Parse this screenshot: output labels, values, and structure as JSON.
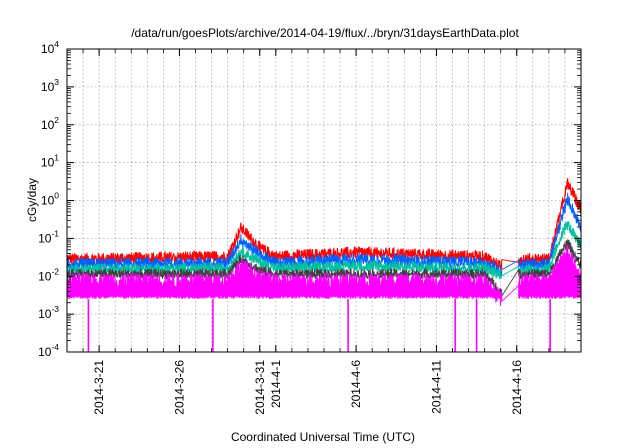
{
  "chart_data": {
    "type": "line",
    "title": "/data/run/goesPlots/archive/2014-04-19/flux/../bryn/31daysEarthData.plot",
    "xlabel": "Coordinated Universal Time (UTC)",
    "ylabel": "cGy/day",
    "x_range": [
      "2014-03-19",
      "2014-04-20"
    ],
    "ylim": [
      0.0001,
      10000
    ],
    "y_scale": "log",
    "grid": true,
    "x_ticks": [
      "2014-3-21",
      "2014-3-26",
      "2014-3-31",
      "2014-4-1",
      "2014-4-6",
      "2014-4-11",
      "2014-4-16"
    ],
    "y_ticks": [
      {
        "value": 0.0001,
        "base": "10",
        "exp": "-4"
      },
      {
        "value": 0.001,
        "base": "10",
        "exp": "-3"
      },
      {
        "value": 0.01,
        "base": "10",
        "exp": "-2"
      },
      {
        "value": 0.1,
        "base": "10",
        "exp": "-1"
      },
      {
        "value": 1,
        "base": "10",
        "exp": "0"
      },
      {
        "value": 10,
        "base": "10",
        "exp": "1"
      },
      {
        "value": 100,
        "base": "10",
        "exp": "2"
      },
      {
        "value": 1000,
        "base": "10",
        "exp": "3"
      },
      {
        "value": 10000,
        "base": "10",
        "exp": "4"
      }
    ],
    "series": [
      {
        "color": "#ff0000",
        "base": 0.03,
        "spread": 0.012,
        "points": [
          [
            "2014-03-19",
            0.03
          ],
          [
            "2014-03-29",
            0.035
          ],
          [
            "2014-03-29T20:00",
            0.2
          ],
          [
            "2014-03-31",
            0.06
          ],
          [
            "2014-04-01",
            0.035
          ],
          [
            "2014-04-06",
            0.045
          ],
          [
            "2014-04-14",
            0.035
          ],
          [
            "2014-04-15",
            0.02
          ],
          [
            "2014-04-16",
            0.03
          ],
          [
            "2014-04-18",
            0.03
          ],
          [
            "2014-04-18T20:00",
            0.8
          ],
          [
            "2014-04-19T04:00",
            3
          ],
          [
            "2014-04-20",
            0.6
          ]
        ]
      },
      {
        "color": "#0060ff",
        "base": 0.022,
        "spread": 0.009,
        "points": [
          [
            "2014-03-19",
            0.022
          ],
          [
            "2014-03-29",
            0.024
          ],
          [
            "2014-03-29T20:00",
            0.1
          ],
          [
            "2014-03-31",
            0.04
          ],
          [
            "2014-04-01",
            0.024
          ],
          [
            "2014-04-06",
            0.03
          ],
          [
            "2014-04-14",
            0.024
          ],
          [
            "2014-04-15",
            0.015
          ],
          [
            "2014-04-16",
            0.022
          ],
          [
            "2014-04-18",
            0.022
          ],
          [
            "2014-04-18T20:00",
            0.4
          ],
          [
            "2014-04-19T04:00",
            1.2
          ],
          [
            "2014-04-20",
            0.2
          ]
        ]
      },
      {
        "color": "#00c0a0",
        "base": 0.016,
        "spread": 0.006,
        "points": [
          [
            "2014-03-19",
            0.016
          ],
          [
            "2014-03-29",
            0.017
          ],
          [
            "2014-03-29T20:00",
            0.05
          ],
          [
            "2014-03-31",
            0.025
          ],
          [
            "2014-04-01",
            0.017
          ],
          [
            "2014-04-06",
            0.02
          ],
          [
            "2014-04-14",
            0.017
          ],
          [
            "2014-04-15",
            0.012
          ],
          [
            "2014-04-16",
            0.016
          ],
          [
            "2014-04-18",
            0.016
          ],
          [
            "2014-04-18T20:00",
            0.15
          ],
          [
            "2014-04-19T04:00",
            0.25
          ],
          [
            "2014-04-20",
            0.06
          ]
        ]
      },
      {
        "color": "#404040",
        "base": 0.012,
        "spread": 0.004,
        "points": [
          [
            "2014-03-19",
            0.012
          ],
          [
            "2014-03-29",
            0.012
          ],
          [
            "2014-03-29T20:00",
            0.03
          ],
          [
            "2014-03-31",
            0.015
          ],
          [
            "2014-04-01",
            0.012
          ],
          [
            "2014-04-14",
            0.012
          ],
          [
            "2014-04-15",
            0.004
          ],
          [
            "2014-04-16",
            0.012
          ],
          [
            "2014-04-18",
            0.012
          ],
          [
            "2014-04-18T20:00",
            0.05
          ],
          [
            "2014-04-19T04:00",
            0.08
          ],
          [
            "2014-04-20",
            0.02
          ]
        ]
      },
      {
        "color": "#ff00ff",
        "base": 0.009,
        "spread": 0.005,
        "points": [
          [
            "2014-03-19",
            0.008
          ],
          [
            "2014-03-29",
            0.008
          ],
          [
            "2014-03-29T20:00",
            0.02
          ],
          [
            "2014-03-31",
            0.01
          ],
          [
            "2014-04-01",
            0.008
          ],
          [
            "2014-04-14",
            0.008
          ],
          [
            "2014-04-15",
            0.003
          ],
          [
            "2014-04-16",
            0.008
          ],
          [
            "2014-04-18",
            0.008
          ],
          [
            "2014-04-18T20:00",
            0.03
          ],
          [
            "2014-04-19T04:00",
            0.05
          ],
          [
            "2014-04-20",
            0.008
          ]
        ]
      }
    ],
    "magenta_floor": 0.0025,
    "magenta_dropouts": [
      "2014-03-20T08:00",
      "2014-03-28T02:00",
      "2014-04-05T12:00",
      "2014-04-12T04:00",
      "2014-04-13T12:00",
      "2014-04-18T02:00"
    ],
    "data_gap": [
      "2014-04-15T02:00",
      "2014-04-16T02:00"
    ]
  }
}
